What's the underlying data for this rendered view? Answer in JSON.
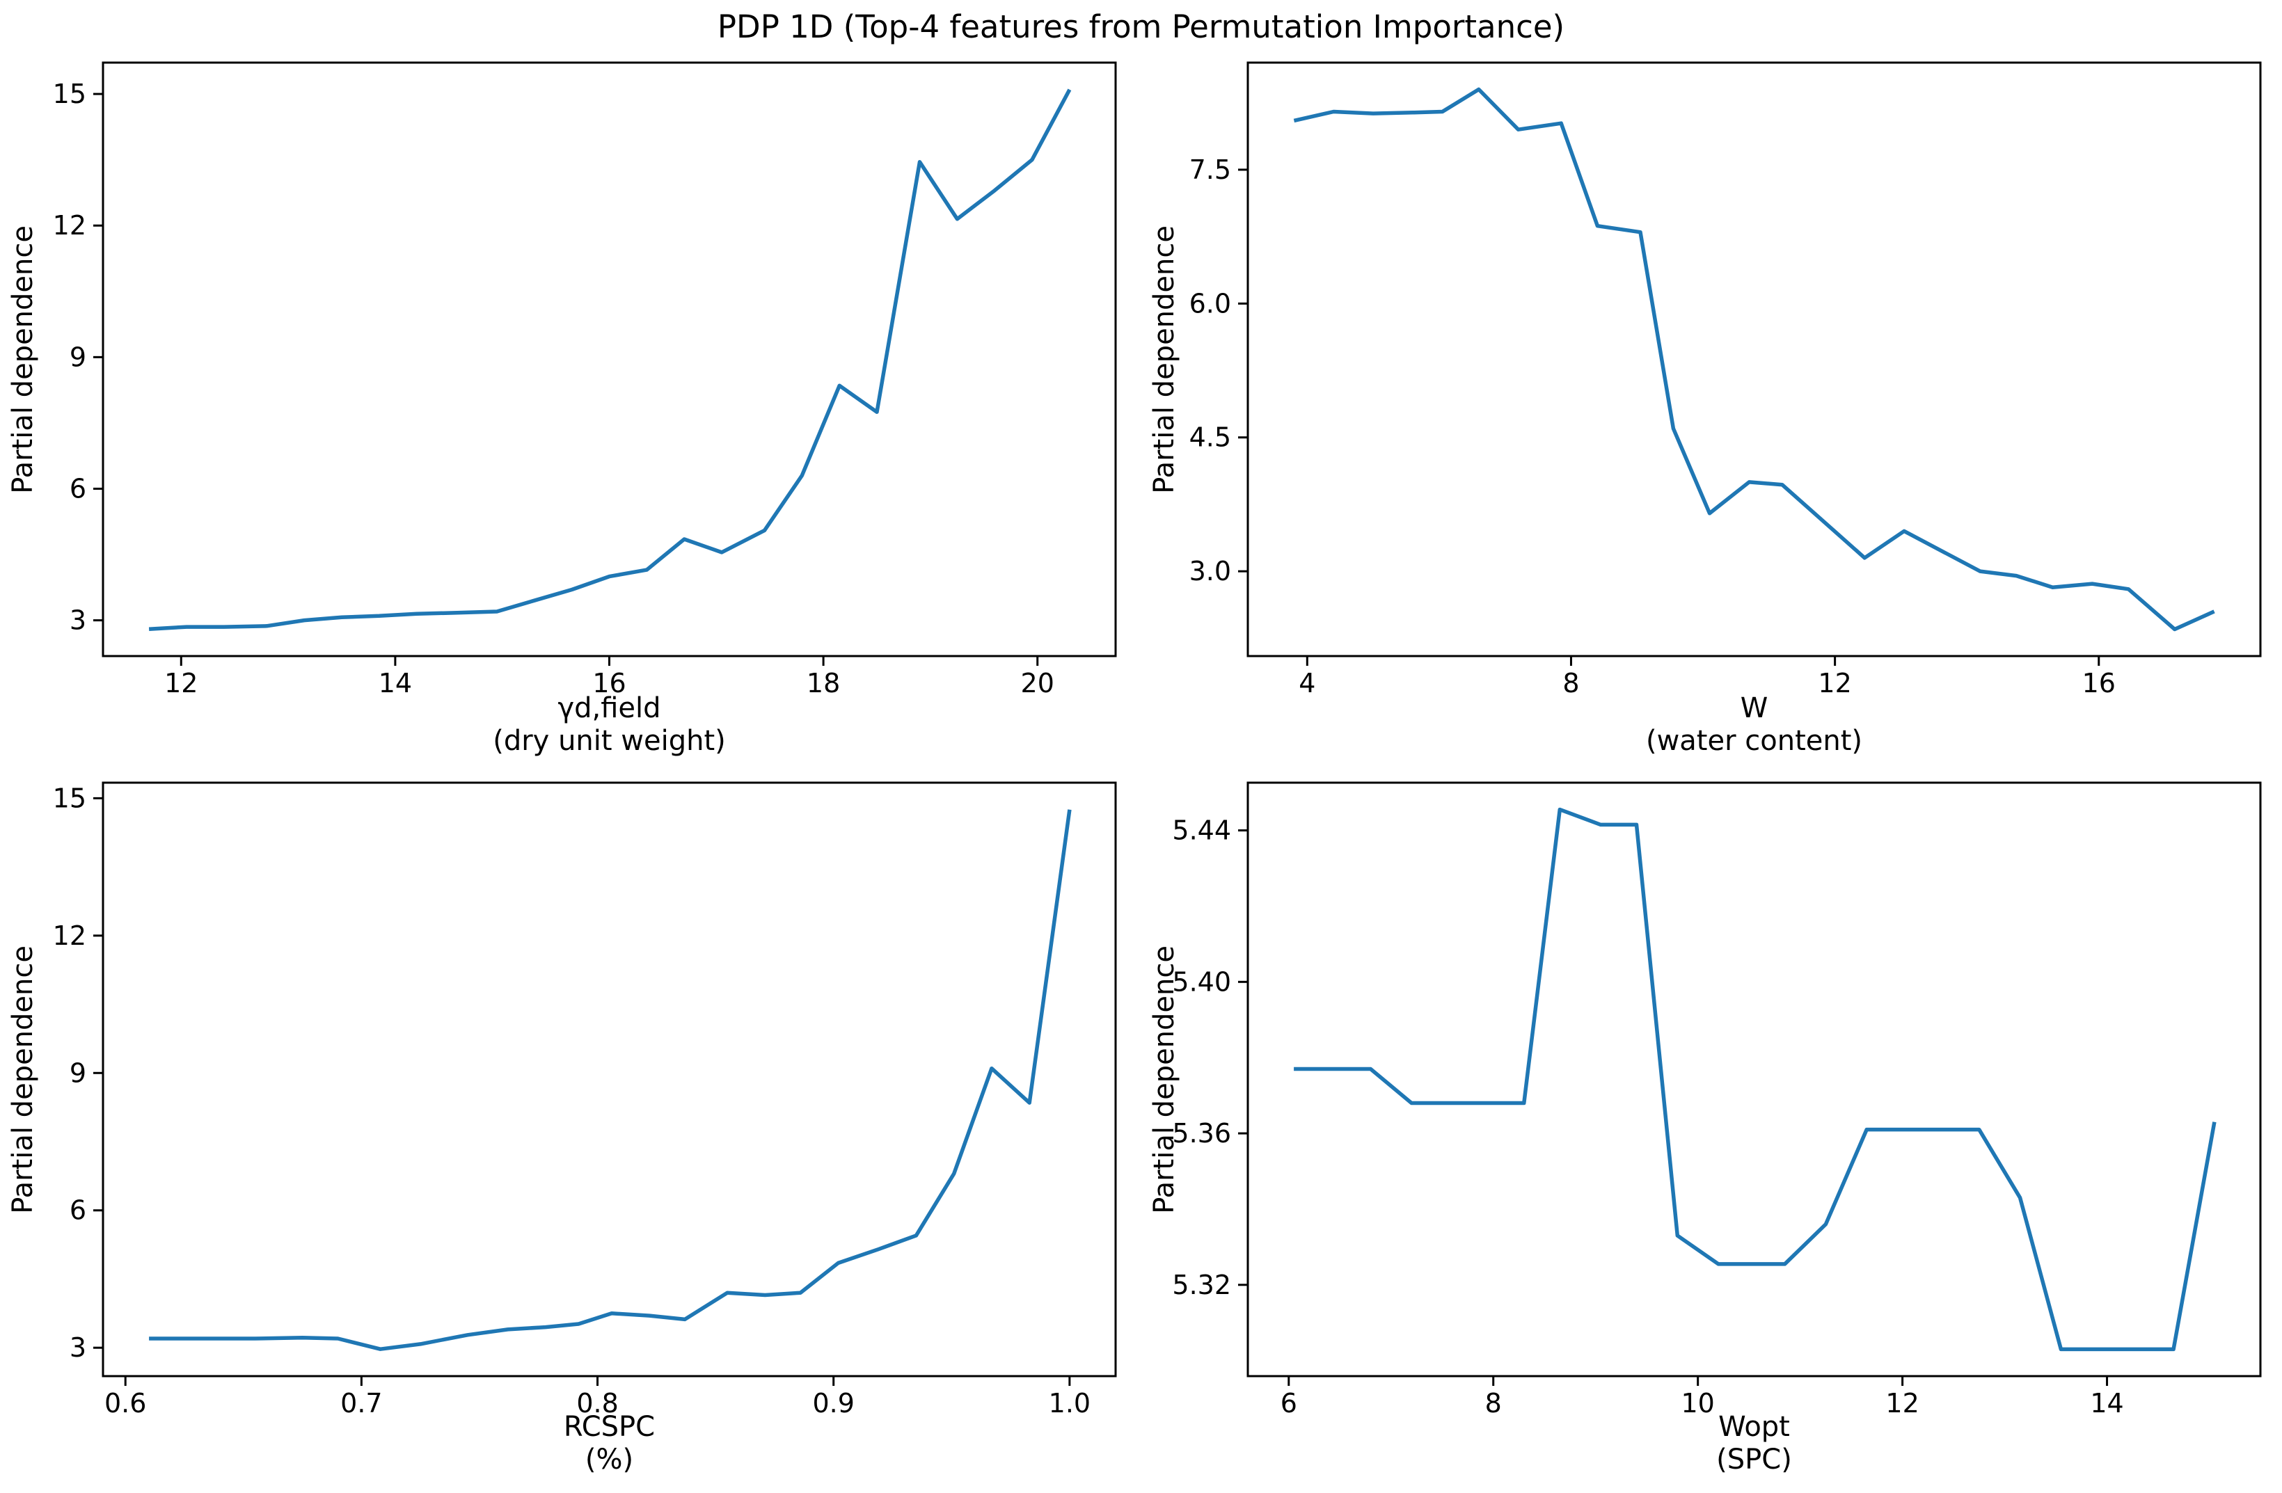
{
  "title": "PDP 1D (Top-4 features from Permutation Importance)",
  "axis_color": "#000000",
  "background_color": "#ffffff",
  "chart_data": [
    {
      "type": "line",
      "feature": "gamma-d-field",
      "xlabel_line1": "γd,field",
      "xlabel_line2": "(dry unit weight)",
      "ylabel": "Partial dependence",
      "line_color": "#1f77b4",
      "legend": "none",
      "grid": false,
      "xlim": [
        11.27,
        20.73
      ],
      "ylim": [
        2.185,
        15.715
      ],
      "xticks": [
        12,
        14,
        16,
        18,
        20
      ],
      "xtick_labels": [
        "12",
        "14",
        "16",
        "18",
        "20"
      ],
      "yticks": [
        3,
        6,
        9,
        12,
        15
      ],
      "ytick_labels": [
        "3",
        "6",
        "9",
        "12",
        "15"
      ],
      "x": [
        11.7,
        12.05,
        12.4,
        12.8,
        13.15,
        13.5,
        13.85,
        14.2,
        14.55,
        14.95,
        15.3,
        15.65,
        16.0,
        16.35,
        16.7,
        17.05,
        17.45,
        17.8,
        18.15,
        18.5,
        18.9,
        19.25,
        19.6,
        19.95,
        20.3
      ],
      "y": [
        2.8,
        2.85,
        2.85,
        2.87,
        3.0,
        3.07,
        3.1,
        3.15,
        3.17,
        3.2,
        3.45,
        3.7,
        4.0,
        4.15,
        4.85,
        4.55,
        5.05,
        6.3,
        8.35,
        7.75,
        13.45,
        12.15,
        12.8,
        13.5,
        15.1
      ]
    },
    {
      "type": "line",
      "feature": "w-water-content",
      "xlabel_line1": "W",
      "xlabel_line2": "(water content)",
      "ylabel": "Partial dependence",
      "line_color": "#1f77b4",
      "legend": "none",
      "grid": false,
      "xlim": [
        3.1,
        18.45
      ],
      "ylim": [
        2.05,
        8.7
      ],
      "xticks": [
        4,
        8,
        12,
        16
      ],
      "xtick_labels": [
        "4",
        "8",
        "12",
        "16"
      ],
      "yticks": [
        3.0,
        4.5,
        6.0,
        7.5
      ],
      "ytick_labels": [
        "3.0",
        "4.5",
        "6.0",
        "7.5"
      ],
      "x": [
        3.8,
        4.4,
        5.0,
        5.6,
        6.05,
        6.6,
        7.2,
        7.85,
        8.4,
        9.05,
        9.55,
        10.1,
        10.7,
        11.2,
        12.45,
        13.05,
        14.2,
        14.75,
        15.3,
        15.9,
        16.45,
        17.15,
        17.75
      ],
      "y": [
        8.05,
        8.15,
        8.13,
        8.14,
        8.15,
        8.4,
        7.95,
        8.02,
        6.87,
        6.8,
        4.6,
        3.65,
        4.0,
        3.97,
        3.15,
        3.45,
        3.0,
        2.95,
        2.82,
        2.86,
        2.8,
        2.35,
        2.55
      ]
    },
    {
      "type": "line",
      "feature": "rcspc",
      "xlabel_line1": "RCSPC",
      "xlabel_line2": "(%)",
      "ylabel": "Partial dependence",
      "line_color": "#1f77b4",
      "legend": "none",
      "grid": false,
      "xlim": [
        0.5905,
        1.0195
      ],
      "ylim": [
        2.38,
        15.34
      ],
      "xticks": [
        0.6,
        0.7,
        0.8,
        0.9,
        1.0
      ],
      "xtick_labels": [
        "0.6",
        "0.7",
        "0.8",
        "0.9",
        "1.0"
      ],
      "yticks": [
        3,
        6,
        9,
        12,
        15
      ],
      "ytick_labels": [
        "3",
        "6",
        "9",
        "12",
        "15"
      ],
      "x": [
        0.61,
        0.635,
        0.655,
        0.675,
        0.69,
        0.708,
        0.725,
        0.745,
        0.762,
        0.778,
        0.792,
        0.806,
        0.822,
        0.837,
        0.855,
        0.871,
        0.886,
        0.902,
        0.919,
        0.935,
        0.951,
        0.967,
        0.983,
        1.0
      ],
      "y": [
        3.2,
        3.2,
        3.2,
        3.22,
        3.2,
        2.97,
        3.08,
        3.28,
        3.4,
        3.45,
        3.52,
        3.75,
        3.7,
        3.62,
        4.2,
        4.15,
        4.2,
        4.85,
        5.15,
        5.45,
        6.8,
        9.1,
        8.35,
        14.75
      ]
    },
    {
      "type": "line",
      "feature": "wopt-spc",
      "xlabel_line1": "Wopt",
      "xlabel_line2": "(SPC)",
      "ylabel": "Partial dependence",
      "line_color": "#1f77b4",
      "legend": "none",
      "grid": false,
      "xlim": [
        5.6,
        15.5
      ],
      "ylim": [
        5.2959,
        5.4526
      ],
      "xticks": [
        6,
        8,
        10,
        12,
        14
      ],
      "xtick_labels": [
        "6",
        "8",
        "10",
        "12",
        "14"
      ],
      "yticks": [
        5.32,
        5.36,
        5.4,
        5.44
      ],
      "ytick_labels": [
        "5.32",
        "5.36",
        "5.40",
        "5.44"
      ],
      "x": [
        6.05,
        6.8,
        7.2,
        8.3,
        8.65,
        9.05,
        9.4,
        9.8,
        10.2,
        10.85,
        11.25,
        11.65,
        12.75,
        13.15,
        13.55,
        14.65,
        15.05
      ],
      "y": [
        5.377,
        5.377,
        5.368,
        5.368,
        5.4455,
        5.4415,
        5.4415,
        5.333,
        5.3255,
        5.3255,
        5.336,
        5.361,
        5.361,
        5.343,
        5.303,
        5.303,
        5.363
      ]
    }
  ]
}
